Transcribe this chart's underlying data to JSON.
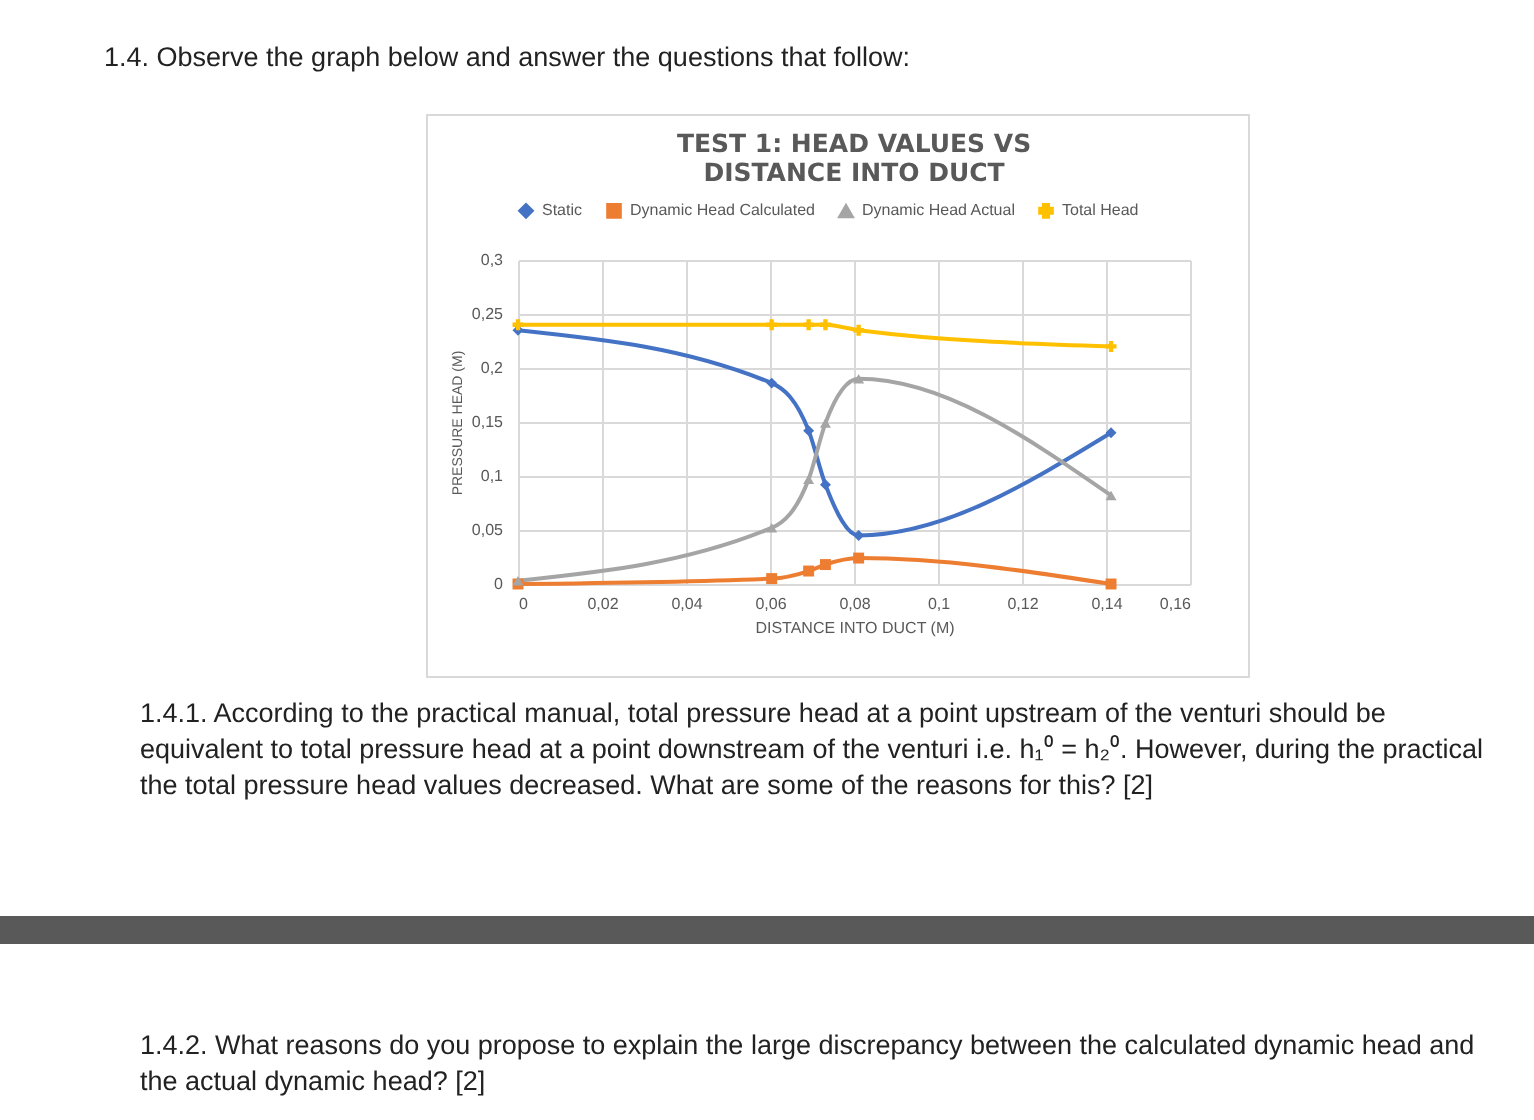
{
  "chart_data": {
    "type": "line",
    "title": "TEST 1: HEAD VALUES VS DISTANCE INTO DUCT",
    "xlabel": "DISTANCE INTO DUCT (M)",
    "ylabel": "PRESSURE HEAD (M)",
    "x": [
      0,
      0.0604,
      0.0692,
      0.0732,
      0.0811,
      0.1412
    ],
    "series": [
      {
        "name": "Static",
        "color": "#4472c4",
        "marker": "diamond",
        "values": [
          0.235,
          0.186,
          0.142,
          0.092,
          0.045,
          0.14
        ]
      },
      {
        "name": "Dynamic Head Calculated",
        "color": "#ed7d31",
        "marker": "square",
        "values": [
          0,
          0.005,
          0.012,
          0.018,
          0.024,
          0
        ]
      },
      {
        "name": "Dynamic Head Actual",
        "color": "#a5a5a5",
        "marker": "triangle",
        "values": [
          0.003,
          0.052,
          0.097,
          0.149,
          0.19,
          0.082
        ]
      },
      {
        "name": "Total Head",
        "color": "#ffc000",
        "marker": "cross",
        "values": [
          0.24,
          0.24,
          0.24,
          0.24,
          0.235,
          0.22
        ]
      }
    ],
    "xlim": [
      0,
      0.16
    ],
    "xticks": [
      0,
      {
        "value": 0.02,
        "label": "0,02"
      },
      {
        "value": 0.04,
        "label": "0,04"
      },
      {
        "value": 0.06,
        "label": "0,06"
      },
      {
        "value": 0.08,
        "label": "0,08"
      },
      {
        "value": 0.1,
        "label": "0,1"
      },
      {
        "value": 0.12,
        "label": "0,12"
      },
      {
        "value": 0.14,
        "label": "0,14"
      },
      {
        "value": 0.16,
        "label": "0,16"
      }
    ],
    "ylim": [
      0,
      0.3
    ],
    "yticks": [
      0,
      {
        "value": 0.05,
        "label": "0,05"
      },
      {
        "value": 0.1,
        "label": "0,1"
      },
      {
        "value": 0.15,
        "label": "0,15"
      },
      {
        "value": 0.2,
        "label": "0,2"
      },
      {
        "value": 0.25,
        "label": "0,25"
      },
      {
        "value": 0.3,
        "label": "0,3"
      }
    ],
    "grid": true,
    "legend": "top",
    "annotations": [
      "1.4. Observe the graph below and answer the questions that follow:",
      "1.4.1. According to the practical manual, total pressure head at a point upstream of the venturi should be equivalent to total pressure head at a point downstream of the venturi i.e. h₁⁰ = h₂⁰. However, during the practical the total pressure head values decreased. What are some of the reasons for this? [2]",
      "1.4.2. What reasons do you propose to explain the large discrepancy between the calculated dynamic head and the actual dynamic head? [2]"
    ]
  }
}
